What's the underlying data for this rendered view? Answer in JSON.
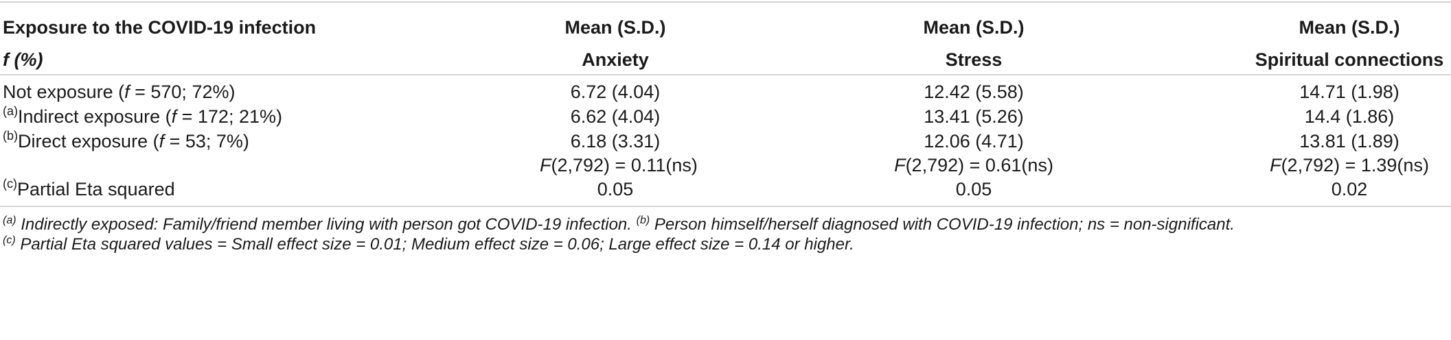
{
  "table": {
    "header1": {
      "col0": "Exposure to the COVID-19 infection",
      "col1": "Mean (S.D.)",
      "col2": "Mean (S.D.)",
      "col3": "Mean (S.D.)"
    },
    "header2": {
      "col0": "f (%)",
      "col1": "Anxiety",
      "col2": "Stress",
      "col3": "Spiritual connections"
    },
    "rows": [
      {
        "sup": "",
        "label_pre": "Not exposure (",
        "label_f": "f",
        "label_post": " = 570; 72%)",
        "anxiety": "6.72 (4.04)",
        "stress": "12.42 (5.58)",
        "spiritual": "14.71 (1.98)"
      },
      {
        "sup": "(a)",
        "label_pre": "Indirect exposure (",
        "label_f": "f",
        "label_post": " = 172; 21%)",
        "anxiety": "6.62 (4.04)",
        "stress": "13.41 (5.26)",
        "spiritual": "14.4 (1.86)"
      },
      {
        "sup": "(b)",
        "label_pre": "Direct exposure (",
        "label_f": "f",
        "label_post": " = 53; 7%)",
        "anxiety": "6.18 (3.31)",
        "stress": "12.06 (4.71)",
        "spiritual": "13.81 (1.89)"
      }
    ],
    "f_row": {
      "anxiety_F": "F",
      "anxiety_rest": "(2,792) = 0.11(ns)",
      "stress_F": "F",
      "stress_rest": "(2,792) = 0.61(ns)",
      "spiritual_F": "F",
      "spiritual_rest": "(2,792) = 1.39(ns)"
    },
    "eta_row": {
      "sup": "(c)",
      "label": "Partial Eta squared",
      "anxiety": "0.05",
      "stress": "0.05",
      "spiritual": "0.02"
    }
  },
  "footnotes": {
    "a_sup": "(a)",
    "a_text": " Indirectly exposed: Family/friend member living with person got COVID-19 infection. ",
    "b_sup": "(b)",
    "b_text": " Person himself/herself diagnosed with COVID-19 infection; ns = non-significant.",
    "c_sup": "(c)",
    "c_text": " Partial Eta squared values = Small effect size = 0.01; Medium effect size = 0.06; Large effect size = 0.14 or higher."
  }
}
